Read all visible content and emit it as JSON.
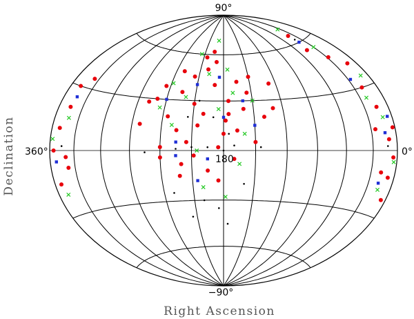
{
  "chart_data": {
    "type": "scatter",
    "projection": "Aitoff-Hammer (all-sky)",
    "xlabel": "Right Ascension",
    "ylabel": "Declination",
    "xlim": [
      360,
      0
    ],
    "ylim": [
      -90,
      90
    ],
    "grid": true,
    "dec_gridlines": [
      -60,
      -30,
      0,
      30,
      60
    ],
    "ra_gridlines": [
      0,
      30,
      60,
      90,
      120,
      150,
      180,
      210,
      240,
      270,
      300,
      330,
      360
    ],
    "tick_labels": {
      "north": "90°",
      "south": "−90°",
      "left": "360°",
      "right": "0°",
      "center": "180"
    },
    "series": [
      {
        "marker": "filled-circle",
        "color": "#e8000b",
        "points": [
          [
            200,
            50
          ],
          [
            215,
            45
          ],
          [
            190,
            40
          ],
          [
            225,
            35
          ],
          [
            175,
            30
          ],
          [
            160,
            25
          ],
          [
            235,
            20
          ],
          [
            205,
            15
          ],
          [
            180,
            10
          ],
          [
            150,
            5
          ],
          [
            240,
            2
          ],
          [
            170,
            -5
          ],
          [
            195,
            -12
          ],
          [
            220,
            -8
          ],
          [
            185,
            -18
          ],
          [
            210,
            28
          ],
          [
            165,
            42
          ],
          [
            230,
            48
          ],
          [
            190,
            55
          ],
          [
            205,
            58
          ],
          [
            245,
            38
          ],
          [
            155,
            35
          ],
          [
            175,
            22
          ],
          [
            200,
            22
          ],
          [
            225,
            12
          ],
          [
            250,
            30
          ],
          [
            140,
            20
          ],
          [
            150,
            45
          ],
          [
            215,
            5
          ],
          [
            185,
            2
          ],
          [
            130,
            25
          ],
          [
            128,
            40
          ],
          [
            262,
            15
          ],
          [
            258,
            28
          ],
          [
            195,
            62
          ],
          [
            178,
            18
          ],
          [
            208,
            -3
          ],
          [
            222,
            -15
          ],
          [
            167,
            12
          ],
          [
            240,
            -4
          ],
          [
            345,
            20
          ],
          [
            350,
            10
          ],
          [
            340,
            -3
          ],
          [
            355,
            0
          ],
          [
            338,
            -8
          ],
          [
            347,
            30
          ],
          [
            352,
            -15
          ],
          [
            336,
            35
          ],
          [
            15,
            20
          ],
          [
            10,
            5
          ],
          [
            5,
            -3
          ],
          [
            20,
            30
          ],
          [
            8,
            -12
          ],
          [
            25,
            10
          ],
          [
            3,
            10
          ],
          [
            18,
            -10
          ],
          [
            12,
            42
          ],
          [
            28,
            48
          ],
          [
            45,
            55
          ],
          [
            40,
            65
          ],
          [
            6,
            -22
          ]
        ]
      },
      {
        "marker": "x",
        "color": "#22c822",
        "points": [
          [
            198,
            47
          ],
          [
            220,
            32
          ],
          [
            170,
            35
          ],
          [
            185,
            25
          ],
          [
            230,
            15
          ],
          [
            160,
            10
          ],
          [
            205,
            0
          ],
          [
            245,
            25
          ],
          [
            175,
            50
          ],
          [
            215,
            60
          ],
          [
            165,
            -8
          ],
          [
            238,
            40
          ],
          [
            150,
            30
          ],
          [
            200,
            -22
          ],
          [
            178,
            -28
          ],
          [
            190,
            70
          ],
          [
            342,
            15
          ],
          [
            357,
            5
          ],
          [
            348,
            -20
          ],
          [
            12,
            15
          ],
          [
            22,
            25
          ],
          [
            4,
            -5
          ],
          [
            16,
            -18
          ],
          [
            10,
            35
          ],
          [
            30,
            55
          ],
          [
            35,
            70
          ]
        ]
      },
      {
        "marker": "filled-square",
        "color": "#1f2fd6",
        "points": [
          [
            210,
            40
          ],
          [
            180,
            20
          ],
          [
            225,
            5
          ],
          [
            160,
            30
          ],
          [
            195,
            -5
          ],
          [
            240,
            30
          ],
          [
            185,
            45
          ],
          [
            150,
            15
          ],
          [
            225,
            -3
          ],
          [
            205,
            -18
          ],
          [
            343,
            25
          ],
          [
            352,
            -5
          ],
          [
            14,
            8
          ],
          [
            6,
            15
          ],
          [
            27,
            35
          ],
          [
            40,
            60
          ],
          [
            18,
            -15
          ]
        ]
      },
      {
        "marker": "dot",
        "color": "#000000",
        "points": [
          [
            205,
            30
          ],
          [
            190,
            20
          ],
          [
            175,
            10
          ],
          [
            215,
            20
          ],
          [
            180,
            0
          ],
          [
            195,
            2
          ],
          [
            210,
            2
          ],
          [
            170,
            3
          ],
          [
            225,
            1
          ],
          [
            200,
            -30
          ],
          [
            185,
            -35
          ],
          [
            215,
            -40
          ],
          [
            175,
            -45
          ],
          [
            230,
            -25
          ],
          [
            160,
            -20
          ],
          [
            255,
            -1
          ],
          [
            145,
            2
          ],
          [
            345,
            2
          ],
          [
            12,
            2
          ],
          [
            40,
            62
          ]
        ]
      }
    ]
  }
}
